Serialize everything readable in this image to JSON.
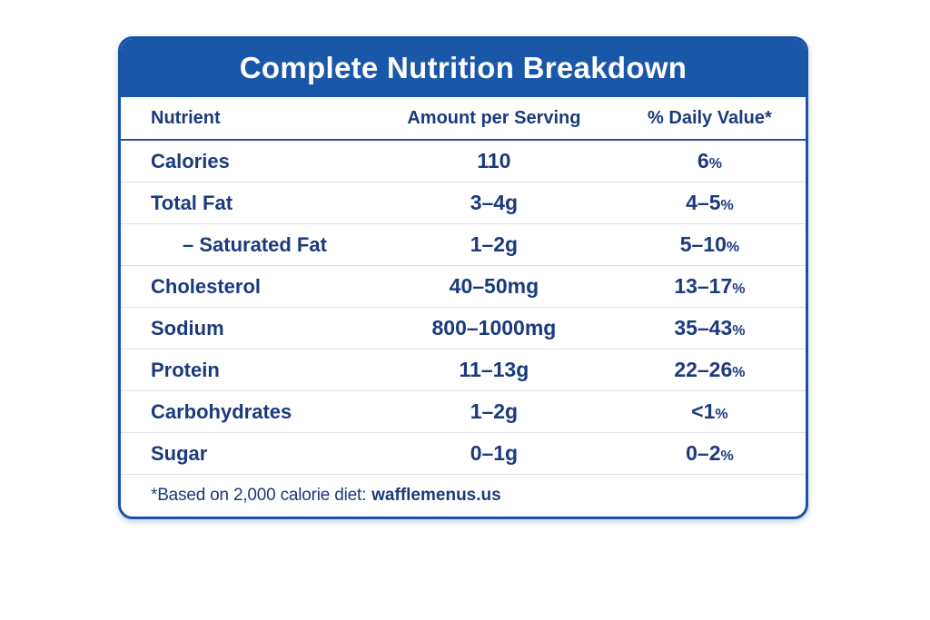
{
  "card": {
    "title": "Complete Nutrition Breakdown",
    "columns": {
      "nutrient": "Nutrient",
      "amount": "Amount per Serving",
      "daily_value": "% Daily Value*"
    },
    "rows": [
      {
        "nutrient": "Calories",
        "amount": "110",
        "dv": "6",
        "dv_unit": "%"
      },
      {
        "nutrient": "Total Fat",
        "amount": "3–4g",
        "dv": "4–5",
        "dv_unit": "%"
      },
      {
        "nutrient": "– Saturated Fat",
        "amount": "1–2g",
        "dv": "5–10",
        "dv_unit": "%",
        "indent": true
      },
      {
        "nutrient": "Cholesterol",
        "amount": "40–50mg",
        "dv": "13–17",
        "dv_unit": "%"
      },
      {
        "nutrient": "Sodium",
        "amount": "800–1000mg",
        "dv": "35–43",
        "dv_unit": "%"
      },
      {
        "nutrient": "Protein",
        "amount": "11–13g",
        "dv": "22–26",
        "dv_unit": "%"
      },
      {
        "nutrient": "Carbohydrates",
        "amount": "1–2g",
        "dv": "<1",
        "dv_unit": "%"
      },
      {
        "nutrient": "Sugar",
        "amount": "0–1g",
        "dv": "0–2",
        "dv_unit": "%"
      }
    ],
    "footer": {
      "note": "*Based on 2,000 calorie diet:",
      "site": "wafflemenus.us"
    }
  },
  "colors": {
    "header_background": "#1a57a8",
    "card_border": "#1a53a5",
    "text_navy": "#1b3a7d",
    "row_divider": "#dfe1e6",
    "header_divider": "#2a4f96",
    "title_text": "#ffffff"
  },
  "chart_data": {
    "type": "table",
    "title": "Complete Nutrition Breakdown",
    "columns": [
      "Nutrient",
      "Amount per Serving",
      "% Daily Value*"
    ],
    "rows": [
      [
        "Calories",
        "110",
        "6%"
      ],
      [
        "Total Fat",
        "3–4g",
        "4–5%"
      ],
      [
        "– Saturated Fat",
        "1–2g",
        "5–10%"
      ],
      [
        "Cholesterol",
        "40–50mg",
        "13–17%"
      ],
      [
        "Sodium",
        "800–1000mg",
        "35–43%"
      ],
      [
        "Protein",
        "11–13g",
        "22–26%"
      ],
      [
        "Carbohydrates",
        "1–2g",
        "<1%"
      ],
      [
        "Sugar",
        "0–1g",
        "0–2%"
      ]
    ],
    "footnote": "*Based on 2,000 calorie diet: wafflemenus.us"
  }
}
